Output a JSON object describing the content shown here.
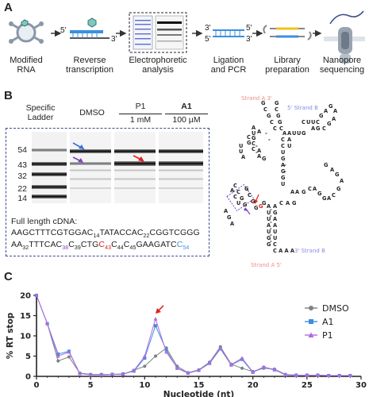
{
  "panelA": {
    "letter": "A",
    "steps": [
      {
        "label": "Modified\nRNA"
      },
      {
        "label": "Reverse\ntranscription"
      },
      {
        "label": "Electrophoretic\nanalysis"
      },
      {
        "label": "Ligation\nand PCR"
      },
      {
        "label": "Library\npreparation"
      },
      {
        "label": "Nanopore\nsequencing"
      }
    ],
    "end_labels": {
      "five_a": "5'",
      "three_a": "3'",
      "three_b": "3'",
      "five_b": "5'",
      "five_c": "5'",
      "three_c": "3'"
    }
  },
  "panelB": {
    "letter": "B",
    "lanes": {
      "ladder": "Specific\nLadder",
      "dmso": "DMSO",
      "p1": "P1",
      "p1_conc": "1 mM",
      "a1": "A1",
      "a1_conc": "100 µM"
    },
    "ladder_sizes": [
      "54",
      "43",
      "32",
      "22",
      "14"
    ],
    "cdna_title": "Full length cDNA:",
    "cdna_line1": [
      {
        "t": "AAGCTTTCGTGGAC"
      },
      {
        "t": "14",
        "sub": true
      },
      {
        "t": "TATACCAC"
      },
      {
        "t": "22",
        "sub": true
      },
      {
        "t": "CGGTCGGG"
      }
    ],
    "cdna_line2": [
      {
        "t": "AA"
      },
      {
        "t": "32",
        "sub": true
      },
      {
        "t": "TTTCAC"
      },
      {
        "t": "38",
        "sub": true,
        "c": "purple"
      },
      {
        "t": "C"
      },
      {
        "t": "39",
        "sub": true
      },
      {
        "t": "CTG"
      },
      {
        "t": "C",
        "c": "red"
      },
      {
        "t": "43",
        "sub": true,
        "c": "red"
      },
      {
        "t": "C"
      },
      {
        "t": "44",
        "sub": true
      },
      {
        "t": "C"
      },
      {
        "t": "45",
        "sub": true
      },
      {
        "t": "GAAGATC"
      },
      {
        "t": "C",
        "c": "blue"
      },
      {
        "t": "54",
        "sub": true,
        "c": "blue"
      }
    ],
    "structure": {
      "strand_a3": "Strand A 3'",
      "strand_b5": "5' Strand B",
      "strand_a5": "Strand A 5'",
      "strand_b3": "3' Strand B",
      "tail": "C A A A"
    }
  },
  "panelC": {
    "letter": "C",
    "chart_data": {
      "type": "line",
      "xlabel": "Nucleotide (nt)",
      "ylabel": "% RT stop",
      "xlim": [
        0,
        30
      ],
      "ylim": [
        0,
        20
      ],
      "xticks": [
        0,
        5,
        10,
        15,
        20,
        25,
        30
      ],
      "yticks": [
        0,
        5,
        10,
        15,
        20
      ],
      "legend_position": "top-right",
      "x": [
        0,
        1,
        2,
        3,
        4,
        5,
        6,
        7,
        8,
        9,
        10,
        11,
        12,
        13,
        14,
        15,
        16,
        17,
        18,
        19,
        20,
        21,
        22,
        23,
        24,
        25,
        26,
        27,
        28,
        29
      ],
      "series": [
        {
          "name": "DMSO",
          "color": "#808080",
          "marker": "circle",
          "values": [
            20,
            13,
            3.8,
            4.8,
            0.8,
            0.5,
            0.5,
            0.5,
            0.5,
            1.5,
            2.5,
            5.0,
            7.0,
            2.5,
            0.9,
            1.6,
            3.5,
            7.3,
            3.0,
            2.0,
            1.2,
            2.0,
            1.8,
            0.5,
            0.3,
            0.3,
            0.3,
            0.2,
            0.2,
            0.2
          ]
        },
        {
          "name": "A1",
          "color": "#3b8fe0",
          "marker": "square",
          "values": [
            20,
            13,
            5.5,
            6.2,
            0.7,
            0.4,
            0.4,
            0.5,
            0.6,
            1.3,
            4.5,
            12.5,
            6.5,
            2.0,
            0.8,
            1.5,
            3.2,
            6.8,
            2.8,
            4.2,
            1.0,
            2.2,
            1.6,
            0.4,
            0.3,
            0.3,
            0.3,
            0.2,
            0.2,
            0.2
          ]
        },
        {
          "name": "P1",
          "color": "#b36ae0",
          "marker": "triangle",
          "values": [
            20,
            13,
            5.0,
            6.0,
            0.7,
            0.4,
            0.4,
            0.5,
            0.6,
            1.4,
            5.0,
            14.2,
            6.0,
            2.1,
            0.8,
            1.5,
            3.3,
            7.0,
            2.9,
            4.5,
            1.1,
            2.3,
            1.7,
            0.4,
            0.3,
            0.3,
            0.3,
            0.2,
            0.2,
            0.2
          ]
        }
      ]
    }
  }
}
